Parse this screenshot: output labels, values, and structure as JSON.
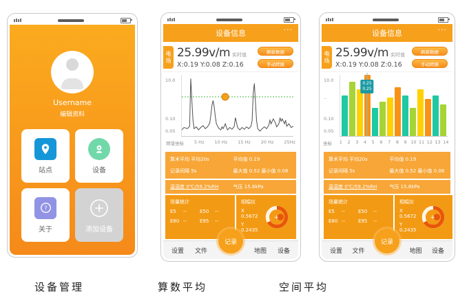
{
  "captions": {
    "phone1": "设备管理",
    "phone2": "算数平均",
    "phone3": "空间平均"
  },
  "phone1": {
    "username": "Username",
    "edit_profile": "编辑资料",
    "tiles": [
      {
        "label": "站点",
        "icon": "location-pin-icon",
        "color": "#1596d8"
      },
      {
        "label": "设备",
        "icon": "device-camera-icon",
        "color": "#71d9a9"
      },
      {
        "label": "关于",
        "icon": "question-mark-icon",
        "color": "#9193e5"
      },
      {
        "label": "添加设备",
        "icon": "plus-icon",
        "color": "#d3d3d3"
      }
    ]
  },
  "device": {
    "header": {
      "title": "设备信息",
      "more": "···"
    },
    "reading": {
      "badge_char1": "电",
      "badge_char2": "场",
      "value": "25.99v/m",
      "value_label": "实时值",
      "xyz": "X:0.19 Y:0.08 Z:0.16",
      "refresh_button": "刷新数据",
      "manual_button": "手动转换"
    },
    "info": {
      "rows": [
        {
          "left": "算术平均 平均20s",
          "right": "平均值 0.19"
        },
        {
          "left": "记录间隔 5s",
          "right": "最大值 0.52  最小值 0.08"
        }
      ],
      "env_left": "温湿度 0℃/59.2%RH",
      "env_right": "气压 15.8kPa"
    },
    "stats": {
      "title": "场量统计",
      "items": [
        {
          "k": "E5",
          "v": "--"
        },
        {
          "k": "E50",
          "v": "--"
        },
        {
          "k": "E80",
          "v": "--"
        },
        {
          "k": "E95",
          "v": "--"
        }
      ]
    },
    "gauge": {
      "title": "相幅仪",
      "x": "X 0.5672",
      "y": "Y 0.2435"
    },
    "tabs": [
      "设置",
      "文件",
      "记录",
      "地图",
      "设备"
    ]
  },
  "chart_data": [
    {
      "type": "line",
      "title": "",
      "line_color": "#4f4f4f",
      "y_ticks": [
        {
          "label": "10.0",
          "y_pct": 7
        },
        {
          "label": "0.10",
          "y_pct": 58
        },
        {
          "label": "0.05",
          "y_pct": 74
        }
      ],
      "x_ticks": [
        "频谱坐标",
        "5 Hz",
        "10 Hz",
        "15 Hz",
        "20 Hz",
        "25Hz"
      ],
      "ref_line": {
        "y_pct": 36,
        "color": "#44bb44",
        "style": "dashed"
      },
      "marker": {
        "x_pct": 39,
        "y_pct": 36,
        "color": "#f7a01b"
      },
      "points": [
        [
          0,
          90
        ],
        [
          2,
          86
        ],
        [
          5,
          88
        ],
        [
          7,
          84
        ],
        [
          8,
          6
        ],
        [
          9,
          42
        ],
        [
          10,
          74
        ],
        [
          11,
          88
        ],
        [
          13,
          85
        ],
        [
          15,
          90
        ],
        [
          17,
          86
        ],
        [
          19,
          83
        ],
        [
          21,
          88
        ],
        [
          23,
          85
        ],
        [
          25,
          79
        ],
        [
          26,
          66
        ],
        [
          27,
          50
        ],
        [
          28,
          42
        ],
        [
          29,
          52
        ],
        [
          30,
          68
        ],
        [
          31,
          80
        ],
        [
          33,
          87
        ],
        [
          35,
          90
        ],
        [
          36,
          85
        ],
        [
          37,
          88
        ],
        [
          39,
          80
        ],
        [
          40,
          86
        ],
        [
          41,
          90
        ],
        [
          43,
          86
        ],
        [
          45,
          89
        ],
        [
          47,
          84
        ],
        [
          48,
          70
        ],
        [
          49,
          78
        ],
        [
          50,
          86
        ],
        [
          52,
          90
        ],
        [
          54,
          86
        ],
        [
          56,
          89
        ],
        [
          58,
          85
        ],
        [
          60,
          88
        ],
        [
          62,
          84
        ],
        [
          63,
          75
        ],
        [
          64,
          30
        ],
        [
          65,
          14
        ],
        [
          66,
          45
        ],
        [
          67,
          75
        ],
        [
          68,
          88
        ],
        [
          70,
          92
        ],
        [
          72,
          88
        ],
        [
          74,
          85
        ],
        [
          76,
          88
        ],
        [
          78,
          82
        ],
        [
          79,
          74
        ],
        [
          80,
          80
        ],
        [
          82,
          72
        ],
        [
          84,
          79
        ],
        [
          85,
          85
        ],
        [
          87,
          80
        ],
        [
          88,
          70
        ],
        [
          89,
          76
        ],
        [
          90,
          72
        ],
        [
          92,
          80
        ],
        [
          93,
          74
        ],
        [
          94,
          84
        ],
        [
          96,
          80
        ],
        [
          98,
          86
        ],
        [
          100,
          84
        ]
      ]
    },
    {
      "type": "bar",
      "title": "",
      "axis_corner_label": "坐标",
      "categories": [
        "1",
        "2",
        "3",
        "4",
        "5",
        "6",
        "7",
        "8",
        "9",
        "10",
        "11",
        "12",
        "13",
        "14"
      ],
      "heights_pct": [
        66,
        89,
        76,
        100,
        46,
        56,
        63,
        80,
        66,
        46,
        76,
        61,
        66,
        52
      ],
      "bar_colors": [
        "#1ec9a4",
        "#a6d436",
        "#ffd100",
        "#f79216"
      ],
      "y_ticks": [
        {
          "label": "10.0",
          "y_pct": 7
        },
        {
          "label": "..",
          "y_pct": 30
        },
        {
          "label": "0.10",
          "y_pct": 58
        },
        {
          "label": "0.05",
          "y_pct": 74
        }
      ],
      "tooltip": {
        "bar_index": 4,
        "lines": [
          "0.25",
          "0.25"
        ]
      }
    }
  ]
}
